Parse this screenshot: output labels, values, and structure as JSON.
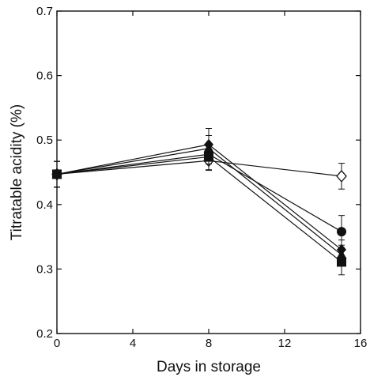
{
  "chart_data": {
    "type": "line",
    "xlabel": "Days in storage",
    "ylabel": "Titratable acidity (%)",
    "xlim": [
      0,
      16
    ],
    "ylim": [
      0.2,
      0.7
    ],
    "x_ticks": [
      0,
      4,
      8,
      12,
      16
    ],
    "y_ticks": [
      0.2,
      0.3,
      0.4,
      0.5,
      0.6,
      0.7
    ],
    "x_tick_labels": [
      "0",
      "4",
      "8",
      "12",
      "16"
    ],
    "y_tick_labels": [
      "0.2",
      "0.3",
      "0.4",
      "0.5",
      "0.6",
      "0.7"
    ],
    "grid": false,
    "x": [
      0,
      8,
      15
    ],
    "series": [
      {
        "marker": "open-diamond",
        "values": [
          0.447,
          0.468,
          0.444
        ],
        "error": [
          0.02,
          0.015,
          0.02
        ]
      },
      {
        "marker": "filled-circle",
        "values": [
          0.447,
          0.478,
          0.358
        ],
        "error": [
          0.02,
          0.015,
          0.025
        ]
      },
      {
        "marker": "filled-diamond",
        "values": [
          0.447,
          0.493,
          0.33
        ],
        "error": [
          0.02,
          0.025,
          0.015
        ]
      },
      {
        "marker": "filled-triangle",
        "values": [
          0.447,
          0.487,
          0.322
        ],
        "error": [
          0.02,
          0.02,
          0.015
        ]
      },
      {
        "marker": "filled-square",
        "values": [
          0.447,
          0.474,
          0.311
        ],
        "error": [
          0.02,
          0.02,
          0.02
        ]
      }
    ]
  }
}
